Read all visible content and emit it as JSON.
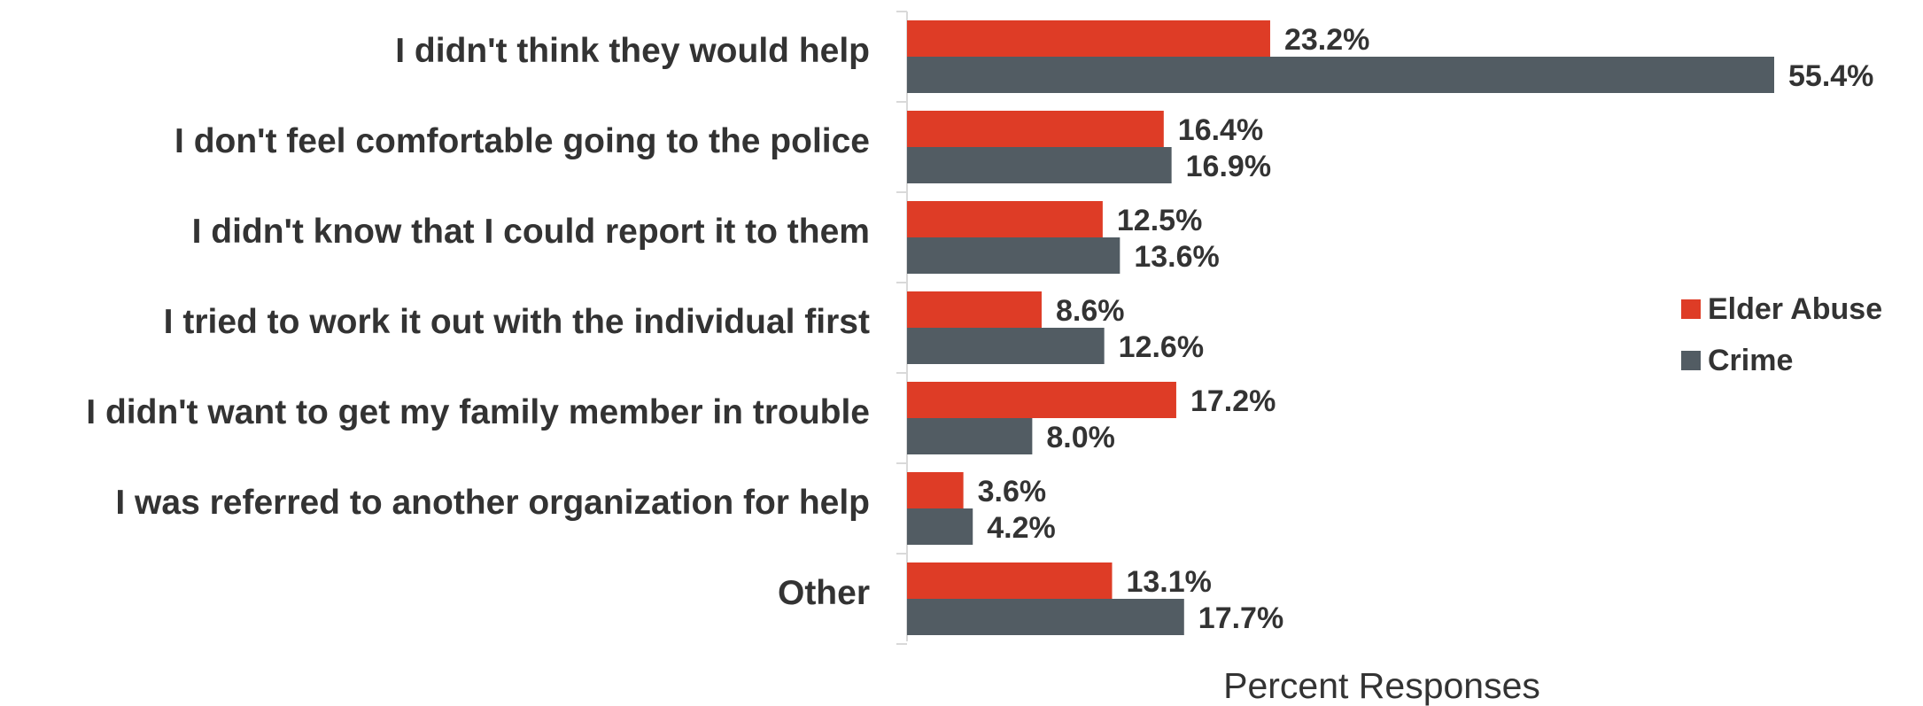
{
  "chart_data": {
    "type": "bar",
    "orientation": "horizontal",
    "categories": [
      "I didn't think they would help",
      "I don't feel comfortable going to the police",
      "I didn't know that I could report it to them",
      "I tried to work it out with the individual first",
      "I didn't want to get my family member in trouble",
      "I was referred to another organization for help",
      "Other"
    ],
    "series": [
      {
        "name": "Elder Abuse",
        "color": "#de3c26",
        "values": [
          23.2,
          16.4,
          12.5,
          8.6,
          17.2,
          3.6,
          13.1
        ],
        "labels": [
          "23.2%",
          "16.4%",
          "12.5%",
          "8.6%",
          "17.2%",
          "3.6%",
          "13.1%"
        ]
      },
      {
        "name": "Crime",
        "color": "#525c63",
        "values": [
          55.4,
          16.9,
          13.6,
          12.6,
          8.0,
          4.2,
          17.7
        ],
        "labels": [
          "55.4%",
          "16.9%",
          "13.6%",
          "12.6%",
          "8.0%",
          "4.2%",
          "17.7%"
        ]
      }
    ],
    "title": "",
    "xlabel": "Percent Responses",
    "ylabel": "",
    "xlim": [
      0,
      55.4
    ],
    "grid": false,
    "legend_position": "right"
  }
}
